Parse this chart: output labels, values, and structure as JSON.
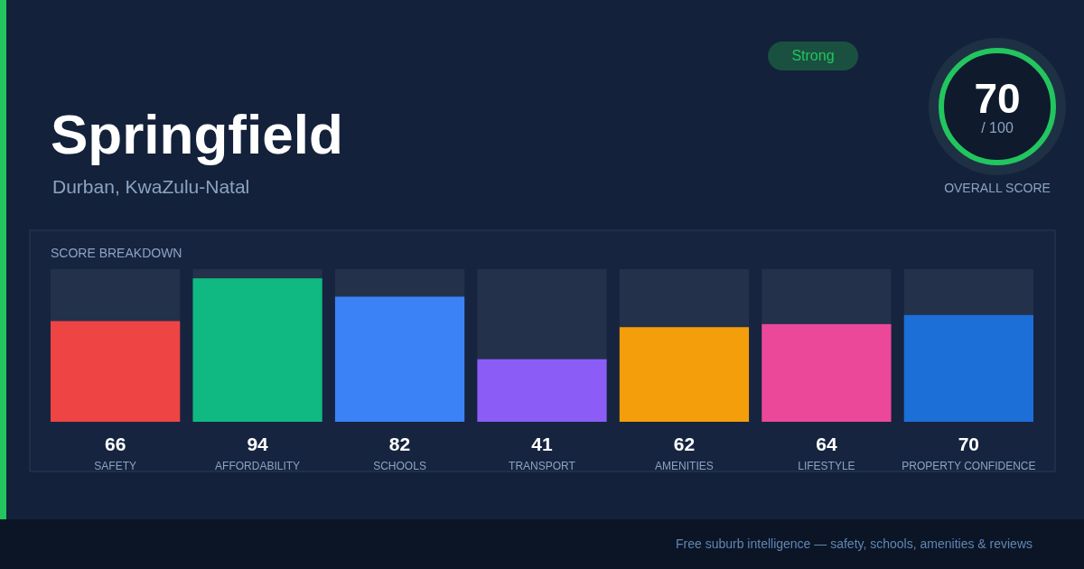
{
  "chart_data": {
    "type": "bar",
    "title": "Springfield",
    "subtitle": "Durban, KwaZulu-Natal",
    "categories": [
      "SAFETY",
      "AFFORDABILITY",
      "SCHOOLS",
      "TRANSPORT",
      "AMENITIES",
      "LIFESTYLE",
      "PROPERTY CONFIDENCE"
    ],
    "values": [
      66,
      94,
      82,
      41,
      62,
      64,
      70
    ],
    "colors": [
      "#ef4444",
      "#10b981",
      "#3b82f6",
      "#8b5cf6",
      "#f59e0b",
      "#ec4899",
      "#1d6fd8"
    ],
    "ylim": [
      0,
      100
    ],
    "tick_labels": "x",
    "data_labels": true,
    "annotations": [
      "Strong",
      "70",
      "/ 100",
      "OVERALL SCORE",
      "SCORE BREAKDOWN",
      "Free suburb intelligence — safety, schools, amenities & reviews"
    ]
  }
}
